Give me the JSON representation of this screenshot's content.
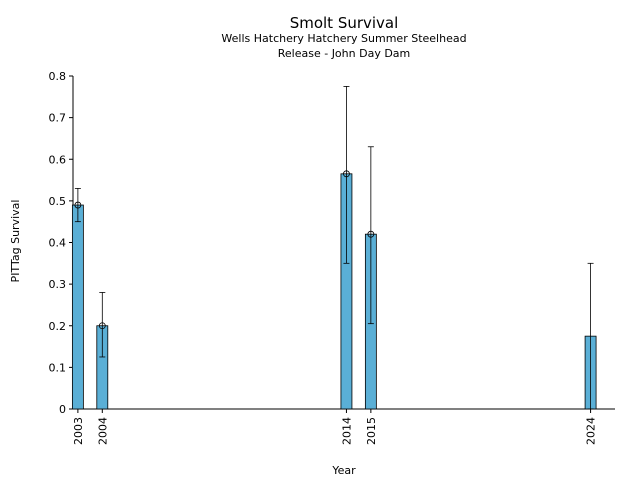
{
  "chart_data": {
    "type": "bar",
    "title": "Smolt Survival",
    "subtitle_lines": [
      "Wells Hatchery Hatchery Summer Steelhead",
      "Release - John Day Dam"
    ],
    "xlabel": "Year",
    "ylabel": "PITTag Survival",
    "ylim": [
      0,
      0.8
    ],
    "yticks": [
      "0",
      "0.1",
      "0.2",
      "0.3",
      "0.4",
      "0.5",
      "0.6",
      "0.7",
      "0.8"
    ],
    "xlim": [
      2002.8,
      2025
    ],
    "grid": false,
    "bar_color": "#5aafd6",
    "points": [
      {
        "year": 2003,
        "label": "2003",
        "value": 0.49,
        "lower": 0.45,
        "upper": 0.53,
        "marker": true
      },
      {
        "year": 2004,
        "label": "2004",
        "value": 0.2,
        "lower": 0.125,
        "upper": 0.28,
        "marker": true
      },
      {
        "year": 2014,
        "label": "2014",
        "value": 0.565,
        "lower": 0.35,
        "upper": 0.775,
        "marker": true
      },
      {
        "year": 2015,
        "label": "2015",
        "value": 0.42,
        "lower": 0.205,
        "upper": 0.63,
        "marker": true
      },
      {
        "year": 2024,
        "label": "2024",
        "value": 0.175,
        "lower": 0,
        "upper": 0.35,
        "marker": false
      }
    ]
  }
}
